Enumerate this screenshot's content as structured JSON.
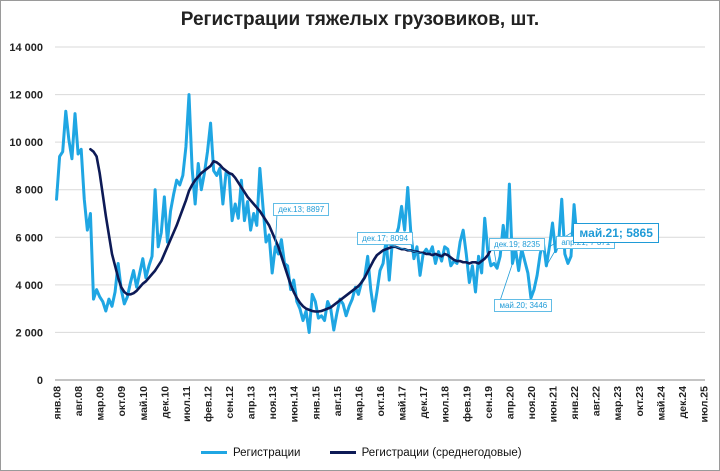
{
  "chart_data": {
    "type": "line",
    "title": "Регистрации тяжелых грузовиков, шт.",
    "ylim": [
      0,
      14000
    ],
    "yticks": [
      0,
      2000,
      4000,
      6000,
      8000,
      10000,
      12000,
      14000
    ],
    "ytick_labels": [
      "0",
      "2 000",
      "4 000",
      "6 000",
      "8 000",
      "10 000",
      "12 000",
      "14 000"
    ],
    "xtick_labels": [
      "янв.08",
      "авг.08",
      "мар.09",
      "окт.09",
      "май.10",
      "дек.10",
      "июл.11",
      "фев.12",
      "сен.12",
      "апр.13",
      "ноя.13",
      "июн.14",
      "янв.15",
      "авг.15",
      "мар.16",
      "окт.16",
      "май.17",
      "дек.17",
      "июл.18",
      "фев.19",
      "сен.19",
      "апр.20",
      "ноя.20",
      "июн.21",
      "янв.22",
      "авг.22",
      "мар.23",
      "окт.23",
      "май.24",
      "дек.24",
      "июл.25"
    ],
    "series": [
      {
        "name": "Регистрации",
        "color": "#1fa6e3",
        "values": [
          7600,
          9400,
          9600,
          11300,
          10100,
          9300,
          11200,
          9500,
          9700,
          7600,
          6300,
          7000,
          3400,
          3800,
          3500,
          3300,
          2900,
          3400,
          3100,
          3700,
          4900,
          3800,
          3200,
          3500,
          4100,
          4600,
          3900,
          4500,
          5100,
          4300,
          4800,
          5200,
          8000,
          5600,
          6200,
          7700,
          5800,
          7100,
          7800,
          8400,
          8200,
          8600,
          9800,
          12000,
          8900,
          7400,
          9100,
          8000,
          8700,
          9600,
          10800,
          8800,
          8600,
          8900,
          7400,
          8700,
          8600,
          6700,
          7400,
          6800,
          8400,
          6700,
          7500,
          6300,
          7000,
          6500,
          8897,
          7300,
          5800,
          6100,
          4500,
          5600,
          5300,
          5900,
          4900,
          4800,
          3800,
          4200,
          3300,
          3000,
          2500,
          2900,
          2000,
          3600,
          3300,
          2600,
          2700,
          2500,
          3300,
          3000,
          2100,
          2800,
          3400,
          3200,
          2700,
          3100,
          3400,
          3900,
          3600,
          4100,
          4300,
          5200,
          3800,
          2900,
          3700,
          4600,
          4900,
          5900,
          4200,
          5800,
          6000,
          6400,
          7300,
          6300,
          8094,
          6200,
          5100,
          5600,
          4400,
          5300,
          5500,
          5300,
          5600,
          4900,
          5400,
          5000,
          5600,
          5500,
          4800,
          5000,
          4900,
          5800,
          6300,
          5300,
          4100,
          4800,
          3700,
          5200,
          4500,
          6800,
          5400,
          4800,
          4900,
          4700,
          5200,
          6500,
          5500,
          8235,
          4900,
          5500,
          4600,
          5500,
          5000,
          4500,
          3446,
          3800,
          4400,
          5300,
          5800,
          4800,
          5600,
          6600,
          5400,
          5800,
          7600,
          5300,
          4900,
          5200,
          7371,
          5865
        ]
      },
      {
        "name": "Регистрации (среднегодовые)",
        "color": "#0d1a56",
        "offset": 11,
        "values": [
          9700,
          9600,
          9400,
          8700,
          7800,
          6900,
          6100,
          5300,
          4800,
          4300,
          3900,
          3700,
          3600,
          3600,
          3650,
          3750,
          3900,
          4050,
          4150,
          4300,
          4450,
          4600,
          4800,
          5000,
          5300,
          5600,
          5900,
          6200,
          6500,
          6850,
          7200,
          7550,
          7950,
          8200,
          8400,
          8550,
          8700,
          8800,
          8900,
          9000,
          9200,
          9150,
          9050,
          8900,
          8800,
          8700,
          8650,
          8500,
          8300,
          8100,
          7900,
          7700,
          7550,
          7400,
          7250,
          7100,
          6900,
          6700,
          6500,
          6200,
          5900,
          5600,
          5200,
          4800,
          4400,
          4000,
          3700,
          3450,
          3250,
          3100,
          3000,
          2950,
          2900,
          2880,
          2880,
          2900,
          2950,
          3000,
          3050,
          3150,
          3250,
          3350,
          3450,
          3550,
          3650,
          3750,
          3850,
          3950,
          4100,
          4300,
          4550,
          4800,
          5050,
          5250,
          5350,
          5450,
          5500,
          5550,
          5600,
          5600,
          5550,
          5500,
          5500,
          5450,
          5450,
          5400,
          5400,
          5350,
          5350,
          5300,
          5300,
          5250,
          5300,
          5250,
          5200,
          5300,
          5250,
          5150,
          5050,
          5000,
          5000,
          4950,
          4950,
          4900,
          4950,
          4950,
          4900,
          5000,
          5100,
          5250,
          5500
        ]
      }
    ],
    "annotations": [
      {
        "label": "дек.13; 8897",
        "index": 71,
        "style": "small"
      },
      {
        "label": "дек.17; 8094",
        "index": 119,
        "style": "small"
      },
      {
        "label": "дек.19; 8235",
        "index": 143,
        "style": "small"
      },
      {
        "label": "апр.21; 7 371",
        "index": 159,
        "style": "small"
      },
      {
        "label": "май.21; 5865",
        "index": 160,
        "style": "big"
      },
      {
        "label": "май.20; 3446",
        "index": 148,
        "style": "small"
      }
    ],
    "legend_position": "bottom",
    "grid": true
  }
}
